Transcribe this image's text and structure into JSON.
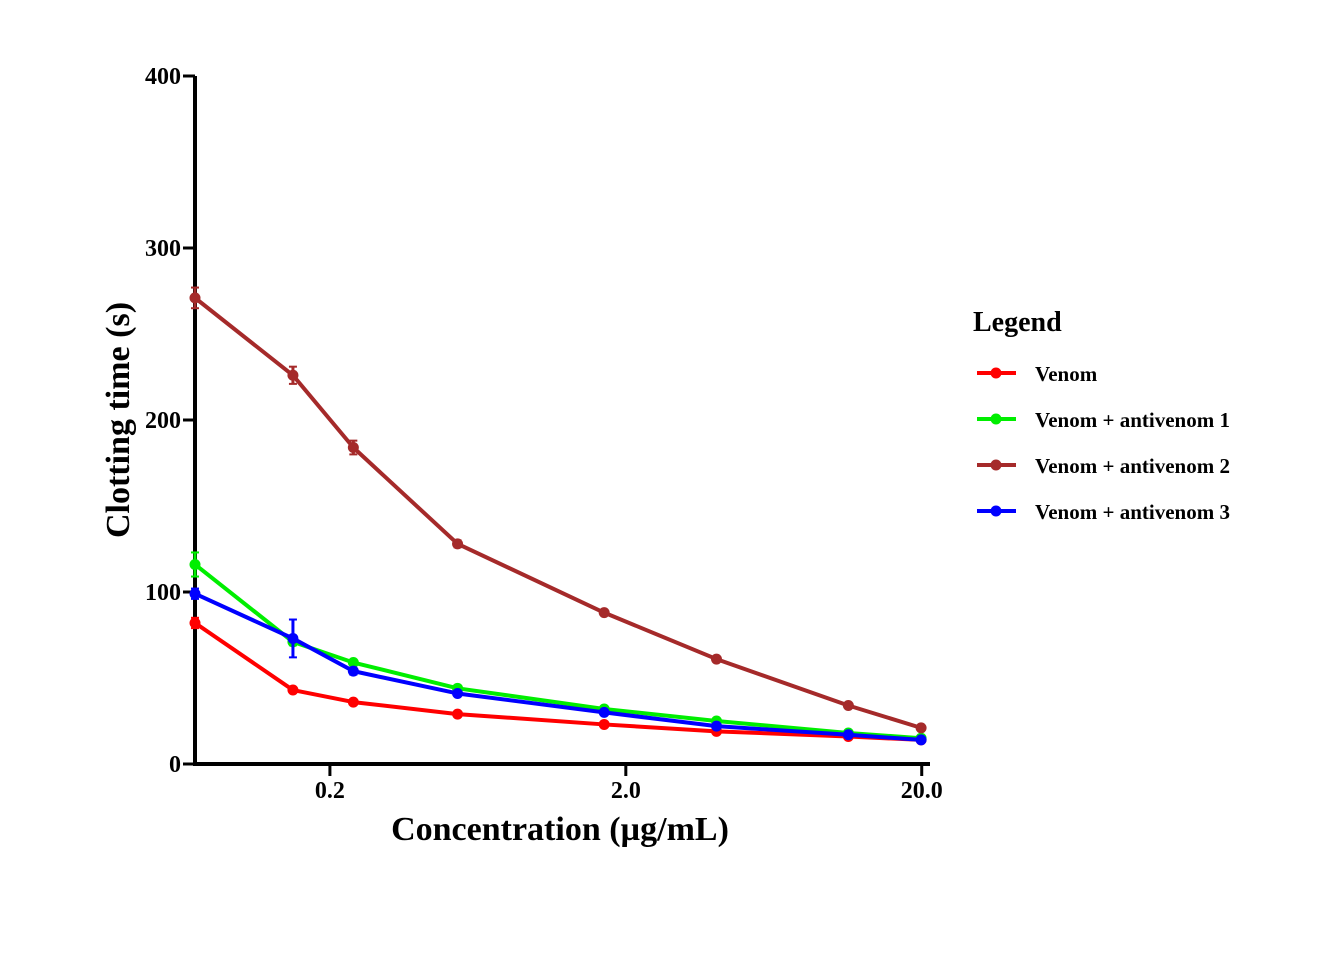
{
  "chart_data": {
    "type": "line",
    "xlabel": "Concentration (µg/mL)",
    "ylabel": "Clotting time (s)",
    "x_scale": "log",
    "x_tick_labels": [
      "0.2",
      "2.0",
      "20.0"
    ],
    "x_tick_values": [
      0.2,
      2.0,
      20.0
    ],
    "x": [
      0.07,
      0.15,
      0.24,
      0.54,
      1.69,
      4.05,
      11.3,
      19.9
    ],
    "xlim": [
      0.07,
      21
    ],
    "yticks": [
      0,
      100,
      200,
      300,
      400
    ],
    "ylim": [
      0,
      400
    ],
    "grid": false,
    "legend": {
      "title": "Legend",
      "placement": "right"
    },
    "series": [
      {
        "name": "Venom",
        "color": "#ff0000",
        "values": [
          82,
          43,
          36,
          29,
          23,
          19,
          16,
          14
        ],
        "errors": [
          3,
          1,
          1,
          1,
          1,
          1,
          1,
          1
        ]
      },
      {
        "name": "Venom + antivenom 1",
        "color": "#00ee00",
        "values": [
          116,
          71,
          59,
          44,
          32,
          25,
          18,
          15
        ],
        "errors": [
          7,
          2,
          1,
          1,
          1,
          1,
          1,
          1
        ]
      },
      {
        "name": "Venom + antivenom 2",
        "color": "#a52a2a",
        "values": [
          271,
          226,
          184,
          128,
          88,
          61,
          34,
          21
        ],
        "errors": [
          6,
          5,
          4,
          2,
          1,
          1,
          1,
          1
        ]
      },
      {
        "name": "Venom + antivenom 3",
        "color": "#0000ff",
        "values": [
          99,
          73,
          54,
          41,
          30,
          22,
          17,
          14
        ],
        "errors": [
          3,
          11,
          2,
          1,
          1,
          1,
          1,
          1
        ]
      }
    ]
  }
}
